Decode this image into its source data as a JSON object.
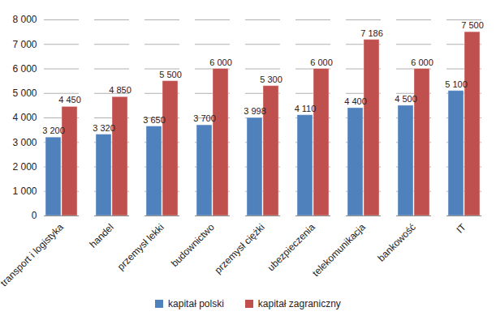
{
  "chart_data": {
    "type": "bar",
    "categories": [
      "transport i logistyka",
      "handel",
      "przemysł lekki",
      "budownictwo",
      "przemysł ciężki",
      "ubezpieczenia",
      "telekomunikacja",
      "bankowość",
      "IT"
    ],
    "series": [
      {
        "name": "kapitał polski",
        "color": "#4f81bd",
        "values": [
          3200,
          3320,
          3650,
          3700,
          3998,
          4110,
          4400,
          4500,
          5100
        ],
        "value_labels": [
          "3 200",
          "3 320",
          "3 650",
          "3 700",
          "3 998",
          "4 110",
          "4 400",
          "4 500",
          "5 100"
        ]
      },
      {
        "name": "kapitał zagraniczny",
        "color": "#c0504d",
        "values": [
          4450,
          4850,
          5500,
          6000,
          5300,
          6000,
          7186,
          6000,
          7500
        ],
        "value_labels": [
          "4 450",
          "4 850",
          "5 500",
          "6 000",
          "5 300",
          "6 000",
          "7 186",
          "6 000",
          "7 500"
        ]
      }
    ],
    "ylim": [
      0,
      8000
    ],
    "yticks": [
      0,
      {
        "value": 1000,
        "label": "1 000"
      },
      {
        "value": 2000,
        "label": "2 000"
      },
      {
        "value": 3000,
        "label": "3 000"
      },
      {
        "value": 4000,
        "label": "4 000"
      },
      {
        "value": 5000,
        "label": "5 000"
      },
      {
        "value": 6000,
        "label": "6 000"
      },
      {
        "value": 7000,
        "label": "7 000"
      },
      {
        "value": 8000,
        "label": "8 000"
      }
    ],
    "grid": true,
    "legend": "bottom",
    "data_labels": true
  }
}
